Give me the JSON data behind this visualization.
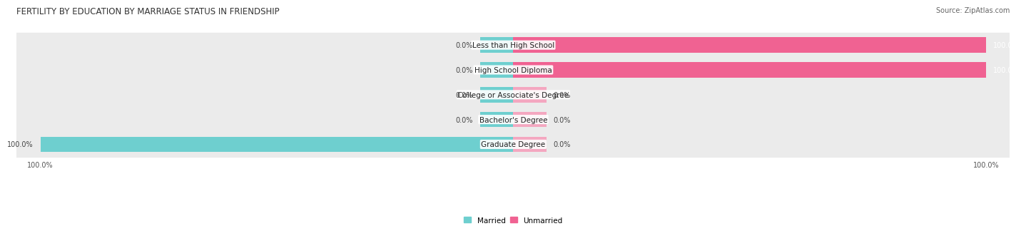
{
  "title": "FERTILITY BY EDUCATION BY MARRIAGE STATUS IN FRIENDSHIP",
  "source": "Source: ZipAtlas.com",
  "categories": [
    "Less than High School",
    "High School Diploma",
    "College or Associate's Degree",
    "Bachelor's Degree",
    "Graduate Degree"
  ],
  "married": [
    0.0,
    0.0,
    0.0,
    0.0,
    100.0
  ],
  "unmarried": [
    100.0,
    100.0,
    0.0,
    0.0,
    0.0
  ],
  "married_color": "#6ecfcf",
  "unmarried_color_full": "#f06292",
  "unmarried_color_stub": "#f4a7c0",
  "row_bg_color": "#ebebeb",
  "title_fontsize": 8.5,
  "source_fontsize": 7,
  "label_fontsize": 7.5,
  "value_fontsize": 7,
  "legend_fontsize": 7.5,
  "bar_height": 0.62,
  "stub_size": 7,
  "xlim": 100
}
